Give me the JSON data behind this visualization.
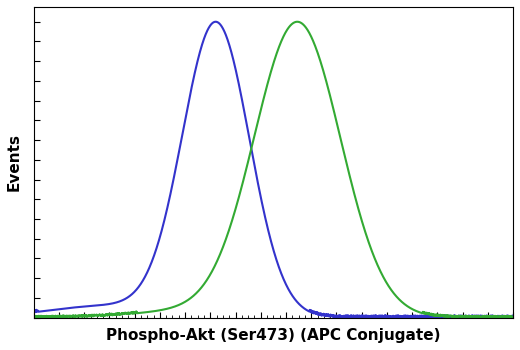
{
  "xlabel": "Phospho-Akt (Ser473) (APC Conjugate)",
  "ylabel": "Events",
  "blue_color": "#3333cc",
  "green_color": "#33aa33",
  "background_color": "#ffffff",
  "blue_mean": 0.38,
  "blue_std": 0.07,
  "green_mean": 0.55,
  "green_std": 0.09,
  "xlim": [
    0,
    1
  ],
  "ylim": [
    0,
    1.05
  ],
  "xlabel_fontsize": 11,
  "ylabel_fontsize": 11,
  "line_width": 1.5
}
